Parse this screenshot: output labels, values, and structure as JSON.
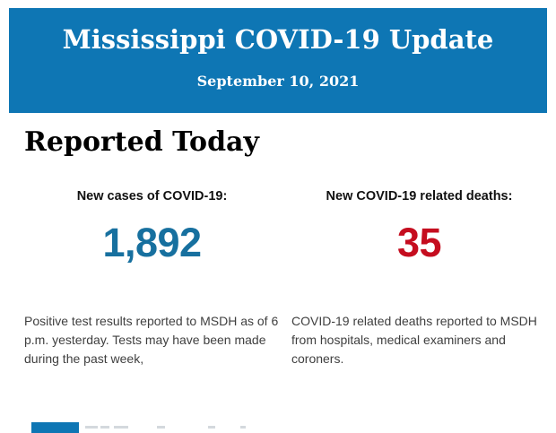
{
  "header": {
    "title": "Mississippi COVID-19 Update",
    "date": "September 10, 2021",
    "bg_color": "#0e76b4",
    "text_color": "#ffffff"
  },
  "section": {
    "heading": "Reported Today"
  },
  "stats": [
    {
      "label": "New cases of COVID-19:",
      "value": "1,892",
      "value_color": "#17709f",
      "description": "Positive test results reported to MSDH as of 6 p.m. yesterday. Tests may have been made during the past week,"
    },
    {
      "label": "New COVID-19 related deaths:",
      "value": "35",
      "value_color": "#c50d1f",
      "description": "COVID-19 related deaths reported to MSDH from hospitals, medical examiners and coroners."
    }
  ]
}
